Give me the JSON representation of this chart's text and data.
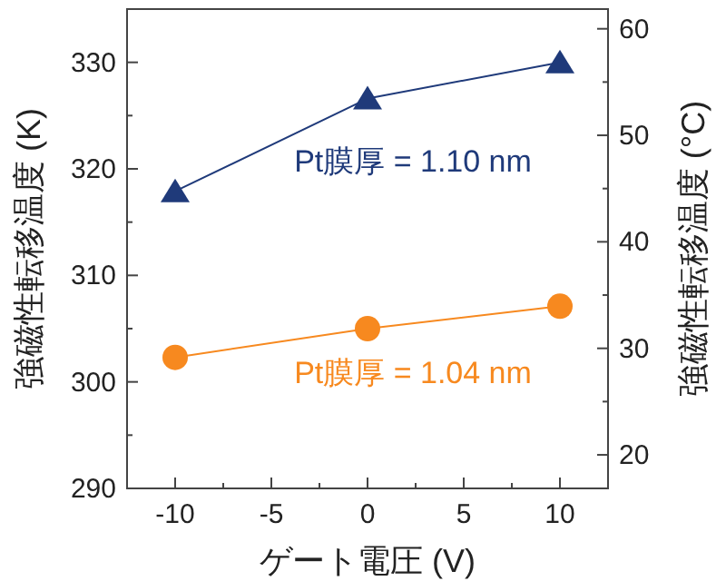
{
  "chart_data": {
    "type": "line",
    "xlabel": "ゲート電圧 (V)",
    "ylabel": "強磁性転移温度 (K)",
    "y2label": "強磁性転移温度 (°C)",
    "x": [
      -10,
      0,
      10
    ],
    "series": [
      {
        "name": "Pt膜厚 = 1.10 nm",
        "color": "#1f3a7a",
        "marker": "triangle",
        "values": [
          317.9,
          326.6,
          330.0
        ]
      },
      {
        "name": "Pt膜厚 = 1.04 nm",
        "color": "#f7891f",
        "marker": "circle",
        "values": [
          302.3,
          305.0,
          307.1
        ]
      }
    ],
    "xlim": [
      -12.5,
      12.5
    ],
    "xticks": [
      -10,
      {
        "value": -7.5,
        "label": null
      },
      -5,
      {
        "value": -2.5,
        "label": null
      },
      0,
      {
        "value": 2.5,
        "label": null
      },
      5,
      {
        "value": 7.5,
        "label": null
      },
      10
    ],
    "ylim": [
      290,
      335
    ],
    "yticks": [
      290,
      {
        "value": 295,
        "label": null
      },
      300,
      {
        "value": 305,
        "label": null
      },
      310,
      {
        "value": 315,
        "label": null
      },
      320,
      {
        "value": 325,
        "label": null
      },
      330
    ],
    "y2lim": [
      16.85,
      61.85
    ],
    "y2ticks": [
      20,
      {
        "value": 25,
        "label": null
      },
      30,
      {
        "value": 35,
        "label": null
      },
      40,
      {
        "value": 45,
        "label": null
      },
      50,
      {
        "value": 55,
        "label": null
      },
      60
    ],
    "grid": false
  }
}
